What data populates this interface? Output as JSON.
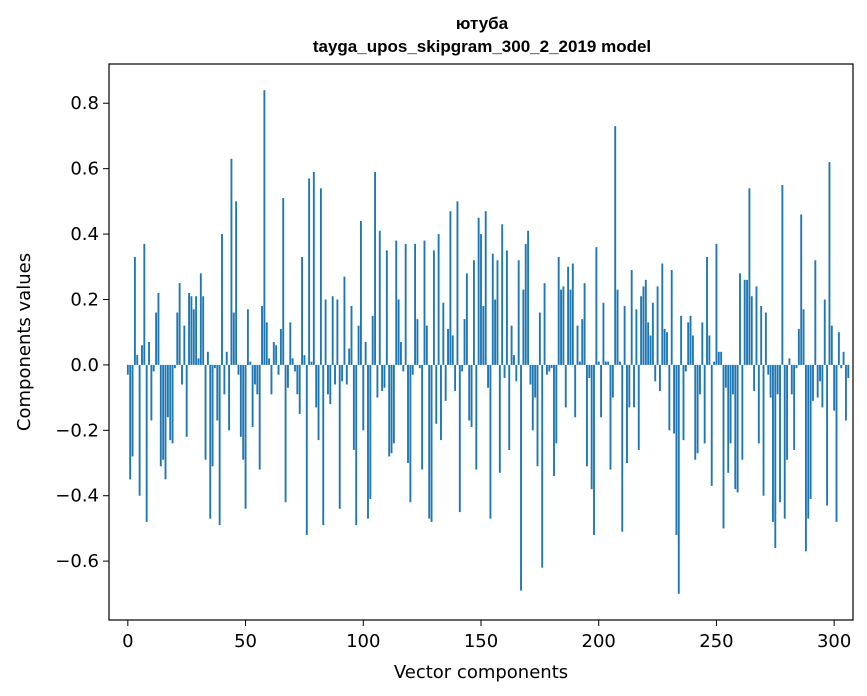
{
  "chart_data": {
    "type": "bar",
    "title": "ютуба",
    "subtitle": "tayga_upos_skipgram_300_2_2019 model",
    "xlabel": "Vector components",
    "ylabel": "Components values",
    "xlim": [
      -8,
      308
    ],
    "ylim": [
      -0.78,
      0.92
    ],
    "xticks": [
      0,
      50,
      100,
      150,
      200,
      250,
      300
    ],
    "xtick_labels": [
      "0",
      "50",
      "100",
      "150",
      "200",
      "250",
      "300"
    ],
    "yticks": [
      -0.6,
      -0.4,
      -0.2,
      0.0,
      0.2,
      0.4,
      0.6,
      0.8
    ],
    "ytick_labels": [
      "−0.6",
      "−0.4",
      "−0.2",
      "0.0",
      "0.2",
      "0.4",
      "0.6",
      "0.8"
    ],
    "bar_color": "#1f77b4",
    "series": [
      {
        "name": "ютуба",
        "values": [
          -0.03,
          -0.35,
          -0.28,
          0.33,
          0.03,
          -0.4,
          0.06,
          0.37,
          -0.48,
          0.07,
          -0.17,
          -0.02,
          0.16,
          0.22,
          -0.31,
          -0.29,
          -0.35,
          -0.16,
          -0.23,
          -0.24,
          -0.01,
          0.16,
          0.25,
          -0.06,
          0.12,
          -0.22,
          0.22,
          0.21,
          0.17,
          0.21,
          0.02,
          0.28,
          0.21,
          -0.29,
          0.04,
          -0.47,
          -0.31,
          -0.01,
          -0.17,
          -0.49,
          0.4,
          -0.09,
          0.04,
          -0.2,
          0.63,
          0.16,
          0.5,
          -0.03,
          -0.22,
          -0.29,
          -0.44,
          0.17,
          0.01,
          -0.19,
          -0.06,
          -0.09,
          -0.32,
          0.18,
          0.84,
          0.13,
          0.02,
          -0.09,
          0.07,
          0.06,
          -0.03,
          0.11,
          0.51,
          -0.42,
          -0.07,
          0.13,
          0.02,
          -0.02,
          -0.09,
          -0.15,
          0.33,
          0.03,
          -0.52,
          0.57,
          0.01,
          0.59,
          -0.13,
          -0.23,
          0.54,
          -0.49,
          0.2,
          -0.09,
          -0.12,
          0.21,
          -0.06,
          0.2,
          -0.44,
          -0.05,
          0.27,
          -0.06,
          0.05,
          0.18,
          -0.26,
          -0.49,
          0.12,
          0.44,
          -0.2,
          0.07,
          -0.47,
          -0.41,
          0.15,
          0.59,
          -0.1,
          0.41,
          -0.08,
          -0.07,
          0.35,
          -0.28,
          -0.27,
          -0.24,
          0.38,
          0.2,
          0.07,
          -0.02,
          0.37,
          -0.3,
          -0.42,
          -0.03,
          0.37,
          0.14,
          -0.01,
          -0.32,
          0.38,
          0.12,
          -0.47,
          -0.48,
          0.35,
          -0.18,
          0.4,
          -0.23,
          0.19,
          -0.11,
          0.11,
          0.47,
          0.09,
          -0.08,
          0.5,
          -0.45,
          -0.02,
          0.14,
          0.28,
          -0.17,
          -0.19,
          0.32,
          -0.32,
          0.45,
          0.4,
          0.18,
          0.47,
          -0.07,
          -0.47,
          0.34,
          0.2,
          0.32,
          -0.33,
          0.43,
          -0.04,
          0.35,
          -0.26,
          0.12,
          0.03,
          -0.05,
          0.32,
          -0.69,
          0.23,
          0.37,
          0.41,
          -0.06,
          -0.2,
          -0.1,
          -0.31,
          0.16,
          -0.62,
          0.25,
          -0.03,
          -0.02,
          -0.01,
          -0.34,
          -0.24,
          0.33,
          0.23,
          0.24,
          -0.13,
          0.3,
          0.23,
          0.31,
          -0.16,
          0.12,
          0.01,
          0.14,
          0.25,
          -0.31,
          -0.04,
          -0.38,
          -0.52,
          0.36,
          0.01,
          -0.16,
          0.19,
          0.01,
          0.01,
          -0.32,
          -0.1,
          0.73,
          0.23,
          0.01,
          -0.51,
          0.18,
          -0.3,
          -0.13,
          0.29,
          -0.13,
          0.17,
          -0.26,
          0.21,
          0.24,
          0.26,
          0.13,
          0.09,
          0.19,
          -0.05,
          0.24,
          -0.08,
          0.31,
          0.11,
          0.1,
          -0.2,
          0.29,
          -0.21,
          -0.52,
          -0.7,
          0.15,
          -0.23,
          -0.02,
          0.13,
          0.15,
          0.09,
          -0.29,
          -0.27,
          -0.09,
          0.13,
          -0.24,
          0.33,
          0.09,
          -0.37,
          0.01,
          0.37,
          0.04,
          0.04,
          -0.5,
          -0.07,
          -0.33,
          -0.24,
          -0.09,
          -0.38,
          -0.39,
          0.28,
          -0.29,
          0.26,
          0.26,
          0.54,
          0.21,
          -0.08,
          0.24,
          -0.24,
          0.18,
          -0.4,
          0.16,
          -0.03,
          -0.1,
          -0.48,
          -0.56,
          -0.09,
          -0.42,
          0.55,
          -0.47,
          -0.29,
          0.02,
          -0.09,
          -0.26,
          -0.01,
          0.11,
          0.46,
          0.17,
          -0.57,
          -0.47,
          -0.41,
          -0.11,
          0.32,
          -0.1,
          -0.05,
          -0.13,
          0.2,
          -0.43,
          0.62,
          0.12,
          -0.14,
          -0.48,
          0.1,
          -0.01,
          0.04,
          -0.17,
          -0.04
        ]
      }
    ]
  }
}
